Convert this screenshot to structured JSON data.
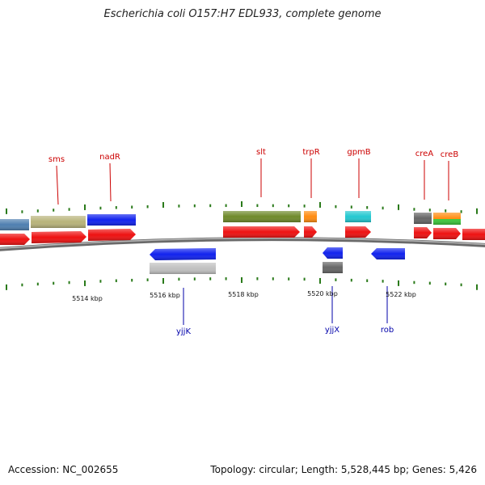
{
  "title": "Escherichia coli O157:H7 EDL933, complete genome",
  "footer": {
    "accession": "Accession: NC_002655",
    "summary": "Topology: circular; Length: 5,528,445 bp; Genes: 5,426"
  },
  "scale": {
    "labels": [
      "5514 kbp",
      "5516 kbp",
      "5518 kbp",
      "5520 kbp",
      "5522 kbp"
    ]
  },
  "genes_top": [
    {
      "name": "sms",
      "color": "#cc0000"
    },
    {
      "name": "nadR",
      "color": "#cc0000"
    },
    {
      "name": "slt",
      "color": "#cc0000"
    },
    {
      "name": "trpR",
      "color": "#cc0000"
    },
    {
      "name": "gpmB",
      "color": "#cc0000"
    },
    {
      "name": "creA",
      "color": "#cc0000"
    },
    {
      "name": "creB",
      "color": "#cc0000"
    }
  ],
  "genes_bottom": [
    {
      "name": "yjjK",
      "color": "#0000aa"
    },
    {
      "name": "yjjX",
      "color": "#0000aa"
    },
    {
      "name": "rob",
      "color": "#0000aa"
    }
  ],
  "colors": {
    "forward_cds": "#ee1111",
    "reverse_cds": "#1122ee",
    "tick": "#2a7a1a",
    "backbone": "#7a7a7a",
    "steelblue": "#4f7fb0",
    "khaki": "#b8b37a",
    "olive": "#6f8a2a",
    "orange": "#ff8c10",
    "cyan": "#22c8d0",
    "darkgray": "#666666",
    "lightgray": "#c0c0c0",
    "green": "#3cc83c"
  }
}
